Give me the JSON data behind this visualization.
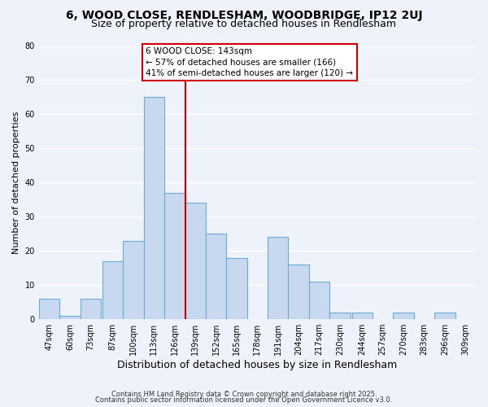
{
  "title": "6, WOOD CLOSE, RENDLESHAM, WOODBRIDGE, IP12 2UJ",
  "subtitle": "Size of property relative to detached houses in Rendlesham",
  "xlabel": "Distribution of detached houses by size in Rendlesham",
  "ylabel": "Number of detached properties",
  "bin_labels": [
    "47sqm",
    "60sqm",
    "73sqm",
    "87sqm",
    "100sqm",
    "113sqm",
    "126sqm",
    "139sqm",
    "152sqm",
    "165sqm",
    "178sqm",
    "191sqm",
    "204sqm",
    "217sqm",
    "230sqm",
    "244sqm",
    "257sqm",
    "270sqm",
    "283sqm",
    "296sqm",
    "309sqm"
  ],
  "bin_edges": [
    47,
    60,
    73,
    87,
    100,
    113,
    126,
    139,
    152,
    165,
    178,
    191,
    204,
    217,
    230,
    244,
    257,
    270,
    283,
    296,
    309
  ],
  "bin_width": 13,
  "counts": [
    6,
    1,
    6,
    17,
    23,
    65,
    37,
    34,
    25,
    18,
    0,
    24,
    16,
    11,
    2,
    2,
    0,
    2,
    0,
    2,
    0
  ],
  "bar_color": "#c8d9ef",
  "bar_edge_color": "#6aaad4",
  "vline_x": 139,
  "vline_color": "#cc0000",
  "annotation_box_title": "6 WOOD CLOSE: 143sqm",
  "annotation_line1": "← 57% of detached houses are smaller (166)",
  "annotation_line2": "41% of semi-detached houses are larger (120) →",
  "annotation_box_facecolor": "#ffffff",
  "annotation_box_edgecolor": "#cc0000",
  "ylim": [
    0,
    80
  ],
  "yticks": [
    0,
    10,
    20,
    30,
    40,
    50,
    60,
    70,
    80
  ],
  "footer1": "Contains HM Land Registry data © Crown copyright and database right 2025.",
  "footer2": "Contains public sector information licensed under the Open Government Licence v3.0.",
  "bg_color": "#eef2fb",
  "grid_color": "#ffffff",
  "title_fontsize": 10,
  "subtitle_fontsize": 9,
  "ylabel_fontsize": 8,
  "xlabel_fontsize": 9,
  "tick_fontsize": 7,
  "annotation_fontsize": 7.5,
  "footer_fontsize": 6
}
